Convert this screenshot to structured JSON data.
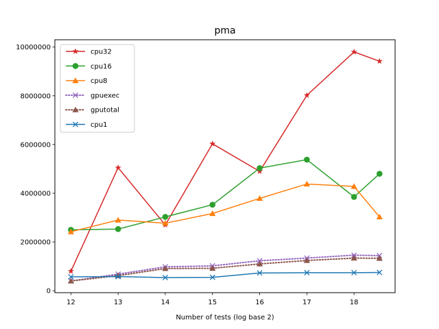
{
  "chart_data": {
    "type": "line",
    "title": "pma",
    "xlabel": "Number of tests (log base 2)",
    "ylabel": "",
    "xlim": [
      11.66,
      18.87
    ],
    "ylim": [
      -80000,
      10300000
    ],
    "xticks": [
      12,
      13,
      14,
      15,
      16,
      17,
      18
    ],
    "yticks": [
      0,
      2000000,
      4000000,
      6000000,
      8000000,
      10000000
    ],
    "x": [
      12,
      13,
      14,
      15,
      16,
      17,
      18,
      18.54
    ],
    "legend_position": "top-left",
    "grid": false,
    "series": [
      {
        "name": "cpu32",
        "color": "#d62728",
        "marker": "star",
        "dashed": false,
        "values": [
          800000,
          5050000,
          2700000,
          6030000,
          4900000,
          8020000,
          9800000,
          9420000
        ]
      },
      {
        "name": "cpu16",
        "color": "#2ca02c",
        "marker": "circle",
        "dashed": false,
        "values": [
          2500000,
          2530000,
          3030000,
          3530000,
          5030000,
          5380000,
          3850000,
          4800000
        ]
      },
      {
        "name": "cpu8",
        "color": "#ff7f0e",
        "marker": "triangle",
        "dashed": false,
        "values": [
          2420000,
          2900000,
          2770000,
          3170000,
          3790000,
          4380000,
          4280000,
          3030000
        ]
      },
      {
        "name": "gpuexec",
        "color": "#9467bd",
        "marker": "x",
        "dashed": true,
        "values": [
          400000,
          680000,
          980000,
          1020000,
          1230000,
          1340000,
          1460000,
          1440000
        ]
      },
      {
        "name": "gputotal",
        "color": "#8c564b",
        "marker": "triangle",
        "dashed": true,
        "values": [
          400000,
          620000,
          910000,
          920000,
          1100000,
          1240000,
          1340000,
          1330000
        ]
      },
      {
        "name": "cpu1",
        "color": "#1f77b4",
        "marker": "x",
        "dashed": false,
        "values": [
          570000,
          580000,
          540000,
          550000,
          730000,
          740000,
          740000,
          750000
        ]
      }
    ]
  }
}
